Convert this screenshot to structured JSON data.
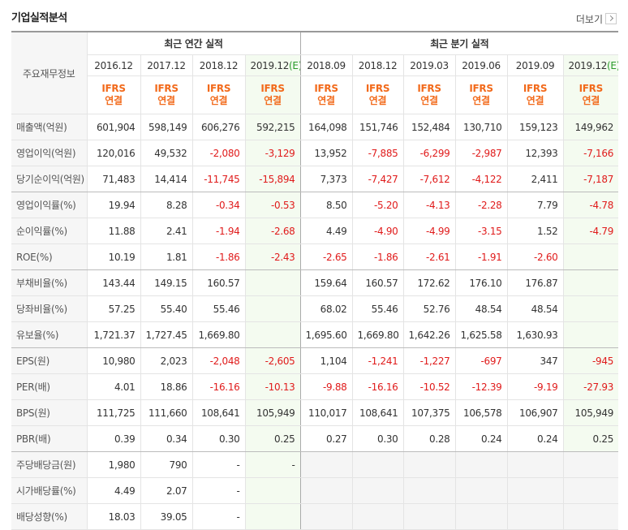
{
  "header": {
    "title": "기업실적분석",
    "more": "더보기"
  },
  "table": {
    "corner": "주요재무정보",
    "groups": [
      "최근 연간 실적",
      "최근 분기 실적"
    ],
    "periods": [
      {
        "label": "2016.12"
      },
      {
        "label": "2017.12"
      },
      {
        "label": "2018.12"
      },
      {
        "label": "2019.12",
        "estimate": "(E)"
      },
      {
        "label": "2018.09"
      },
      {
        "label": "2018.12"
      },
      {
        "label": "2019.03"
      },
      {
        "label": "2019.06"
      },
      {
        "label": "2019.09"
      },
      {
        "label": "2019.12",
        "estimate": "(E)"
      }
    ],
    "accounting": [
      {
        "standard": "IFRS",
        "basis": "연결"
      },
      {
        "standard": "IFRS",
        "basis": "연결"
      },
      {
        "standard": "IFRS",
        "basis": "연결"
      },
      {
        "standard": "IFRS",
        "basis": "연결"
      },
      {
        "standard": "IFRS",
        "basis": "연결"
      },
      {
        "standard": "IFRS",
        "basis": "연결"
      },
      {
        "standard": "IFRS",
        "basis": "연결"
      },
      {
        "standard": "IFRS",
        "basis": "연결"
      },
      {
        "standard": "IFRS",
        "basis": "연결"
      },
      {
        "standard": "IFRS",
        "basis": "연결"
      }
    ],
    "rows": [
      {
        "label": "매출액(억원)",
        "values": [
          "601,904",
          "598,149",
          "606,276",
          "592,215",
          "164,098",
          "151,746",
          "152,484",
          "130,710",
          "159,123",
          "149,962"
        ]
      },
      {
        "label": "영업이익(억원)",
        "values": [
          "120,016",
          "49,532",
          "-2,080",
          "-3,129",
          "13,952",
          "-7,885",
          "-6,299",
          "-2,987",
          "12,393",
          "-7,166"
        ]
      },
      {
        "label": "당기순이익(억원)",
        "values": [
          "71,483",
          "14,414",
          "-11,745",
          "-15,894",
          "7,373",
          "-7,427",
          "-7,612",
          "-4,122",
          "2,411",
          "-7,187"
        ]
      },
      {
        "label": "영업이익률(%)",
        "values": [
          "19.94",
          "8.28",
          "-0.34",
          "-0.53",
          "8.50",
          "-5.20",
          "-4.13",
          "-2.28",
          "7.79",
          "-4.78"
        ]
      },
      {
        "label": "순이익률(%)",
        "values": [
          "11.88",
          "2.41",
          "-1.94",
          "-2.68",
          "4.49",
          "-4.90",
          "-4.99",
          "-3.15",
          "1.52",
          "-4.79"
        ]
      },
      {
        "label": "ROE(%)",
        "values": [
          "10.19",
          "1.81",
          "-1.86",
          "-2.43",
          "-2.65",
          "-1.86",
          "-2.61",
          "-1.91",
          "-2.60",
          null
        ]
      },
      {
        "label": "부채비율(%)",
        "values": [
          "143.44",
          "149.15",
          "160.57",
          null,
          "159.64",
          "160.57",
          "172.62",
          "176.10",
          "176.87",
          null
        ]
      },
      {
        "label": "당좌비율(%)",
        "values": [
          "57.25",
          "55.40",
          "55.46",
          null,
          "68.02",
          "55.46",
          "52.76",
          "48.54",
          "48.54",
          null
        ]
      },
      {
        "label": "유보율(%)",
        "values": [
          "1,721.37",
          "1,727.45",
          "1,669.80",
          null,
          "1,695.60",
          "1,669.80",
          "1,642.26",
          "1,625.58",
          "1,630.93",
          null
        ]
      },
      {
        "label": "EPS(원)",
        "values": [
          "10,980",
          "2,023",
          "-2,048",
          "-2,605",
          "1,104",
          "-1,241",
          "-1,227",
          "-697",
          "347",
          "-945"
        ]
      },
      {
        "label": "PER(배)",
        "values": [
          "4.01",
          "18.86",
          "-16.16",
          "-10.13",
          "-9.88",
          "-16.16",
          "-10.52",
          "-12.39",
          "-9.19",
          "-27.93"
        ]
      },
      {
        "label": "BPS(원)",
        "values": [
          "111,725",
          "111,660",
          "108,641",
          "105,949",
          "110,017",
          "108,641",
          "107,375",
          "106,578",
          "106,907",
          "105,949"
        ]
      },
      {
        "label": "PBR(배)",
        "values": [
          "0.39",
          "0.34",
          "0.30",
          "0.25",
          "0.27",
          "0.30",
          "0.28",
          "0.24",
          "0.24",
          "0.25"
        ]
      },
      {
        "label": "주당배당금(원)",
        "values": [
          "1,980",
          "790",
          "-",
          "-",
          null,
          null,
          null,
          null,
          null,
          null
        ]
      },
      {
        "label": "시가배당률(%)",
        "values": [
          "4.49",
          "2.07",
          "-",
          null,
          null,
          null,
          null,
          null,
          null,
          null
        ]
      },
      {
        "label": "배당성향(%)",
        "values": [
          "18.03",
          "39.05",
          "-",
          null,
          null,
          null,
          null,
          null,
          null,
          null
        ]
      }
    ]
  }
}
